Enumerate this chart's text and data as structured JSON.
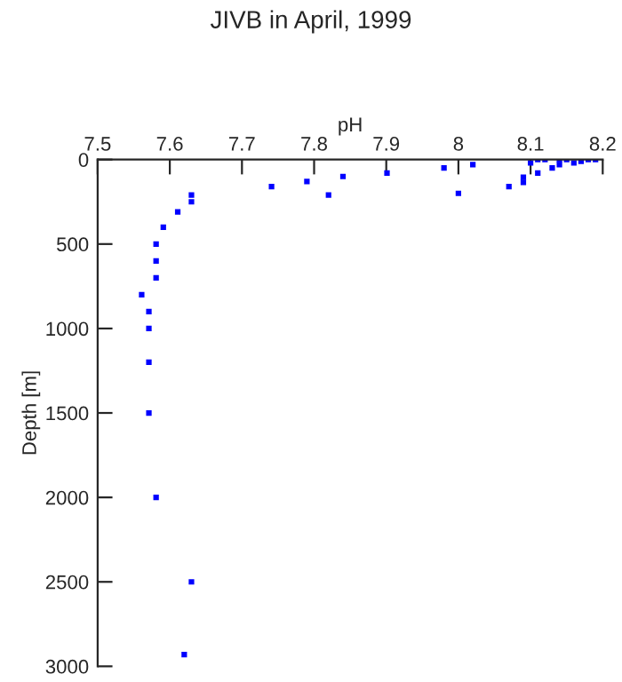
{
  "chart_data": {
    "type": "scatter",
    "title": "JIVB in April, 1999",
    "xlabel": "pH",
    "ylabel": "Depth [m]",
    "x": [
      7.741,
      7.79,
      7.82,
      7.84,
      7.901,
      7.98,
      8.0,
      8.02,
      8.07,
      8.09,
      8.09,
      8.1,
      8.11,
      8.11,
      8.12,
      8.13,
      8.14,
      8.14,
      8.15,
      8.16,
      8.17,
      8.18,
      8.19,
      7.63,
      7.63,
      7.611,
      7.591,
      7.581,
      7.581,
      7.581,
      7.561,
      7.571,
      7.571,
      7.571,
      7.571,
      7.581,
      7.63,
      7.62
    ],
    "series": [
      {
        "color": "#0000ff",
        "values": [
          160,
          130,
          210,
          100,
          80,
          50,
          200,
          30,
          160,
          105,
          135,
          20,
          80,
          0,
          0,
          50,
          30,
          0,
          0,
          20,
          10,
          0,
          0,
          210,
          250,
          310,
          400,
          500,
          600,
          700,
          800,
          900,
          1000,
          1200,
          1500,
          2000,
          2500,
          2930
        ]
      }
    ],
    "xlim": [
      7.5,
      8.2
    ],
    "xticks": [
      7.5,
      7.6,
      7.7,
      7.8,
      7.9,
      8,
      8.1,
      8.2
    ],
    "ylim": [
      3000,
      0
    ],
    "yticks": [
      0,
      500,
      1000,
      1500,
      2000,
      2500,
      3000
    ],
    "marker": "square",
    "grid": false,
    "legend": false
  }
}
